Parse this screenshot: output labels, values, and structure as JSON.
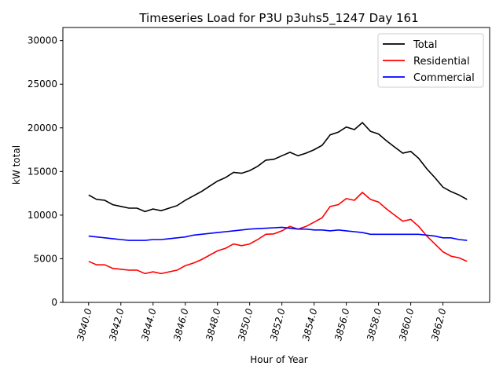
{
  "chart_data": {
    "type": "line",
    "title": "Timeseries Load for P3U p3uhs5_1247  Day 161",
    "xlabel": "Hour of Year",
    "ylabel": "kW total",
    "xlim": [
      3838.4,
      3864.9
    ],
    "ylim": [
      0,
      31500
    ],
    "x_start": 3840,
    "x_step": 0.5,
    "xticks": [
      3840,
      3842,
      3844,
      3846,
      3848,
      3850,
      3852,
      3854,
      3856,
      3858,
      3860,
      3862
    ],
    "xtick_labels": [
      "3840.0",
      "3842.0",
      "3844.0",
      "3846.0",
      "3848.0",
      "3850.0",
      "3852.0",
      "3854.0",
      "3856.0",
      "3858.0",
      "3860.0",
      "3862.0"
    ],
    "yticks": [
      0,
      5000,
      10000,
      15000,
      20000,
      25000,
      30000
    ],
    "ytick_labels": [
      "0",
      "5000",
      "10000",
      "15000",
      "20000",
      "25000",
      "30000"
    ],
    "grid": false,
    "legend_position": "top-right",
    "series": [
      {
        "name": "Total",
        "color": "#000000",
        "values": [
          12300,
          11800,
          11700,
          11200,
          11000,
          10800,
          10800,
          10400,
          10700,
          10500,
          10800,
          11100,
          11700,
          12200,
          12700,
          13300,
          13900,
          14300,
          14900,
          14800,
          15100,
          15600,
          16300,
          16400,
          16800,
          17200,
          16800,
          17100,
          17500,
          18000,
          19200,
          19500,
          20100,
          19800,
          20600,
          19600,
          19300,
          18500,
          17800,
          17100,
          17300,
          16500,
          15300,
          14300,
          13200,
          12700,
          12300,
          11800
        ]
      },
      {
        "name": "Residential",
        "color": "#ff0000",
        "values": [
          4700,
          4300,
          4300,
          3900,
          3800,
          3700,
          3700,
          3300,
          3500,
          3300,
          3500,
          3700,
          4200,
          4500,
          4900,
          5400,
          5900,
          6200,
          6700,
          6500,
          6700,
          7200,
          7800,
          7850,
          8200,
          8700,
          8400,
          8700,
          9200,
          9700,
          11000,
          11200,
          11900,
          11700,
          12600,
          11800,
          11500,
          10700,
          10000,
          9300,
          9500,
          8700,
          7600,
          6700,
          5800,
          5300,
          5100,
          4700
        ]
      },
      {
        "name": "Commercial",
        "color": "#0000ff",
        "values": [
          7600,
          7500,
          7400,
          7300,
          7200,
          7100,
          7100,
          7100,
          7200,
          7200,
          7300,
          7400,
          7500,
          7700,
          7800,
          7900,
          8000,
          8100,
          8200,
          8300,
          8400,
          8450,
          8500,
          8550,
          8600,
          8500,
          8400,
          8400,
          8300,
          8300,
          8200,
          8300,
          8200,
          8100,
          8000,
          7800,
          7800,
          7800,
          7800,
          7800,
          7800,
          7800,
          7700,
          7600,
          7400,
          7400,
          7200,
          7100
        ]
      }
    ]
  }
}
